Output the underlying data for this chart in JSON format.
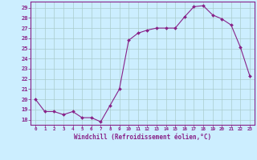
{
  "x": [
    0,
    1,
    2,
    3,
    4,
    5,
    6,
    7,
    8,
    9,
    10,
    11,
    12,
    13,
    14,
    15,
    16,
    17,
    18,
    19,
    20,
    21,
    22,
    23
  ],
  "y": [
    20.0,
    18.8,
    18.8,
    18.5,
    18.8,
    18.2,
    18.2,
    17.8,
    19.4,
    21.0,
    25.8,
    26.5,
    26.8,
    27.0,
    27.0,
    27.0,
    28.1,
    29.1,
    29.2,
    28.3,
    27.9,
    27.3,
    25.1,
    22.3
  ],
  "line_color": "#882288",
  "marker": "D",
  "marker_size": 2.0,
  "bg_color": "#cceeff",
  "grid_color": "#aacccc",
  "xlabel": "Windchill (Refroidissement éolien,°C)",
  "xlabel_color": "#882288",
  "tick_color": "#882288",
  "ylim": [
    17.5,
    29.6
  ],
  "yticks": [
    18,
    19,
    20,
    21,
    22,
    23,
    24,
    25,
    26,
    27,
    28,
    29
  ],
  "xticks": [
    0,
    1,
    2,
    3,
    4,
    5,
    6,
    7,
    8,
    9,
    10,
    11,
    12,
    13,
    14,
    15,
    16,
    17,
    18,
    19,
    20,
    21,
    22,
    23
  ],
  "spine_color": "#882288"
}
